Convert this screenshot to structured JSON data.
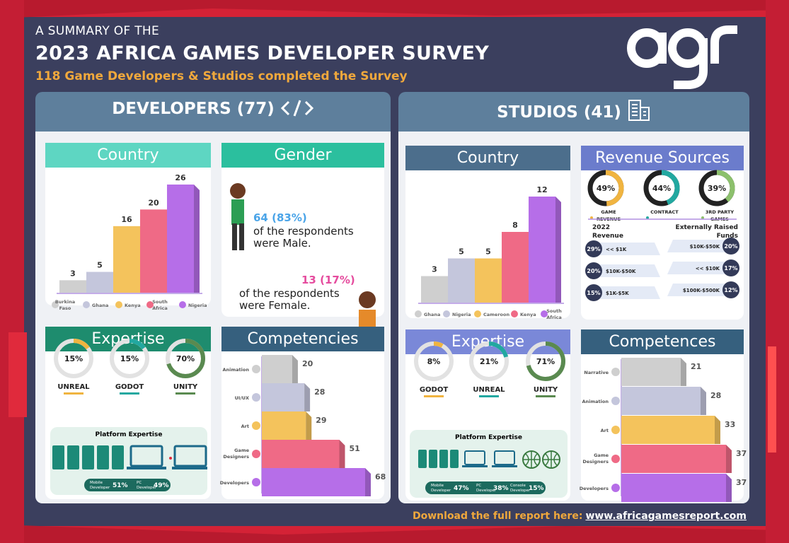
{
  "header": {
    "subtitle": "A SUMMARY OF THE",
    "title": "2023 AFRICA GAMES DEVELOPER SURVEY",
    "tagline": "118 Game Developers & Studios completed the Survey"
  },
  "colors": {
    "bg": "#3b3f5e",
    "orange": "#f0a83c",
    "red": "#e0223a",
    "teal": "#2ab89a",
    "green": "#5a8a50"
  },
  "developers": {
    "title": "DEVELOPERS (77)",
    "icon": "code-icon",
    "country": {
      "title": "Country"
    },
    "gender": {
      "title": "Gender",
      "male_value": "64 (83%)",
      "male_text_1": "of the respondents",
      "male_text_2": "were Male.",
      "female_value": "13 (17%)",
      "female_text_1": "of the respondents",
      "female_text_2": "were Female."
    },
    "expertise": {
      "title": "Expertise"
    },
    "platform": {
      "title": "Platform Expertise",
      "items": [
        {
          "label_1": "Mobile",
          "label_2": "Developer",
          "value": "51%"
        },
        {
          "label_1": "PC",
          "label_2": "Developer",
          "value": "49%"
        }
      ]
    },
    "competencies": {
      "title": "Competencies"
    }
  },
  "studios": {
    "title": "STUDIOS (41)",
    "icon": "building-icon",
    "country": {
      "title": "Country"
    },
    "revenue": {
      "title": "Revenue Sources",
      "revenue_2022_1": "2022",
      "revenue_2022_2": "Revenue",
      "external_1": "Externally Raised",
      "external_2": "Funds",
      "left_rows": [
        {
          "pct": "29%",
          "label": "<< $1K"
        },
        {
          "pct": "20%",
          "label": "$10K-$50K"
        },
        {
          "pct": "15%",
          "label": "$1K-$5K"
        }
      ],
      "right_rows": [
        {
          "pct": "20%",
          "label": "$10K-$50K"
        },
        {
          "pct": "17%",
          "label": "<< $10K"
        },
        {
          "pct": "12%",
          "label": "$100K-$500K"
        }
      ]
    },
    "expertise": {
      "title": "Expertise"
    },
    "platform": {
      "title": "Platform Expertise",
      "items": [
        {
          "label_1": "Mobile",
          "label_2": "Developer",
          "value": "47%"
        },
        {
          "label_1": "PC",
          "label_2": "Developer",
          "value": "38%"
        },
        {
          "label_1": "Console",
          "label_2": "Developer",
          "value": "15%"
        }
      ]
    },
    "competences": {
      "title": "Competences"
    }
  },
  "footer": {
    "text": "Download the full report here:",
    "link": "www.africagamesreport.com"
  },
  "chart_data": [
    {
      "id": "dev-country",
      "type": "bar",
      "categories": [
        "Burkina Faso",
        "Ghana",
        "Kenya",
        "South Africa",
        "Nigeria"
      ],
      "values": [
        3,
        5,
        16,
        20,
        26
      ],
      "colors": [
        "#cfcfcf",
        "#c4c6dc",
        "#f4c35c",
        "#ef6a86",
        "#b66ee8"
      ]
    },
    {
      "id": "dev-expertise",
      "type": "pie",
      "categories": [
        "UNREAL",
        "GODOT",
        "UNITY"
      ],
      "values": [
        15,
        15,
        70
      ],
      "colors": [
        "#f0b440",
        "#22a8a0",
        "#5a8a50"
      ]
    },
    {
      "id": "dev-competencies",
      "type": "bar",
      "orientation": "horizontal",
      "categories": [
        "Animation",
        "UI/UX",
        "Art",
        "Game Designers",
        "Developers"
      ],
      "values": [
        20,
        28,
        29,
        51,
        68
      ],
      "colors": [
        "#cfcfcf",
        "#c4c6dc",
        "#f4c35c",
        "#ef6a86",
        "#b66ee8"
      ]
    },
    {
      "id": "studio-country",
      "type": "bar",
      "categories": [
        "Ghana",
        "Nigeria",
        "Cameroon",
        "Kenya",
        "South Africa"
      ],
      "values": [
        3,
        5,
        5,
        8,
        12
      ],
      "colors": [
        "#cfcfcf",
        "#c4c6dc",
        "#f4c35c",
        "#ef6a86",
        "#b66ee8"
      ]
    },
    {
      "id": "studio-revenue",
      "type": "pie",
      "categories": [
        "GAME REVENUE",
        "CONTRACT",
        "3RD PARTY GAMES"
      ],
      "values": [
        49,
        44,
        39
      ],
      "colors": [
        "#f0b440",
        "#22a8a0",
        "#8cc06c"
      ]
    },
    {
      "id": "studio-expertise",
      "type": "pie",
      "categories": [
        "GODOT",
        "UNREAL",
        "UNITY"
      ],
      "values": [
        8,
        21,
        71
      ],
      "colors": [
        "#f0b440",
        "#22a8a0",
        "#5a8a50"
      ]
    },
    {
      "id": "studio-competences",
      "type": "bar",
      "orientation": "horizontal",
      "categories": [
        "Narrative",
        "Animation",
        "Art",
        "Game Designers",
        "Developers"
      ],
      "values": [
        21,
        28,
        33,
        37,
        37
      ],
      "colors": [
        "#cfcfcf",
        "#c4c6dc",
        "#f4c35c",
        "#ef6a86",
        "#b66ee8"
      ]
    }
  ]
}
